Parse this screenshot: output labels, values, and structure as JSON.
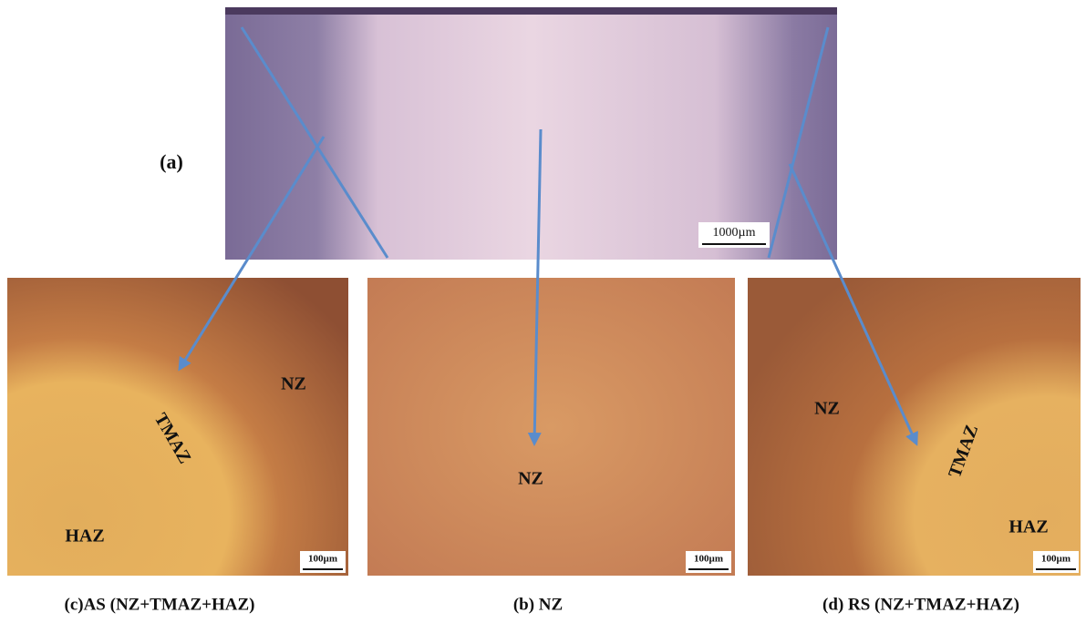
{
  "top": {
    "label": "(a)",
    "scale_bar": "1000µm"
  },
  "panels": [
    {
      "caption": "(c)AS (NZ+TMAZ+HAZ)",
      "scale_bar": "100µm",
      "zones": [
        "NZ",
        "TMAZ",
        "HAZ"
      ]
    },
    {
      "caption": "(b) NZ",
      "scale_bar": "100µm",
      "zones": [
        "NZ"
      ]
    },
    {
      "caption": "(d) RS (NZ+TMAZ+HAZ)",
      "scale_bar": "100µm",
      "zones": [
        "NZ",
        "TMAZ",
        "HAZ"
      ]
    }
  ]
}
